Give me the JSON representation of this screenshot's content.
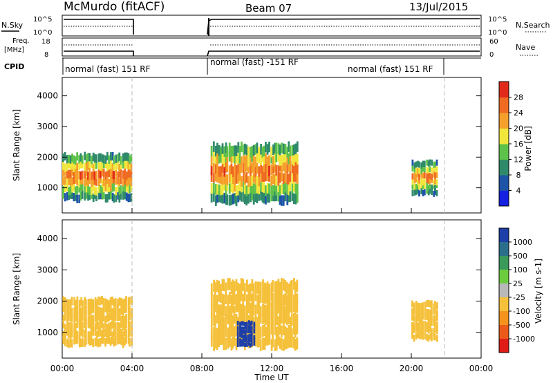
{
  "header": {
    "station": "McMurdo (fitACF)",
    "beam": "Beam 07",
    "date": "13/Jul/2015"
  },
  "panels": {
    "nsky": {
      "label": "N.Sky",
      "tick_top": "10^5",
      "tick_bottom": "10^0",
      "right_label": "N.Search",
      "right_tick_top": "10^5",
      "right_tick_bottom": "10^0"
    },
    "freq": {
      "label_line1": "Freq.",
      "label_line2": "[MHz]",
      "tick_top": "18",
      "tick_bottom": "8",
      "right_label": "Nave",
      "right_tick_top": "60",
      "right_tick_bottom": "0"
    },
    "cpid": {
      "label": "CPID",
      "segments": [
        {
          "text": "normal (fast) 151 RF"
        },
        {
          "text": "normal (fast) -151 RF"
        },
        {
          "text": "normal (fast) 151 RF"
        }
      ]
    }
  },
  "axes": {
    "ylabel": "Slant Range [km]",
    "yticks": [
      "1000",
      "2000",
      "3000",
      "4000"
    ],
    "xticks": [
      "00:00",
      "04:00",
      "08:00",
      "12:00",
      "16:00",
      "20:00",
      "00:00"
    ],
    "xlabel": "Time UT"
  },
  "power_scale": {
    "label": "Power [dB]",
    "ticks": [
      "4",
      "8",
      "12",
      "16",
      "20",
      "24",
      "28"
    ],
    "colors": [
      "#1520e0",
      "#1e54a8",
      "#2f8a6a",
      "#5ec24a",
      "#f0e63c",
      "#f5a02a",
      "#ef6a22",
      "#e22a1a"
    ]
  },
  "velocity_scale": {
    "label": "Velocity [m s-1]",
    "ticks": [
      "1000",
      "500",
      "100",
      "25",
      "-25",
      "-100",
      "-500",
      "-1000"
    ],
    "colors": [
      "#1d3fa8",
      "#2a6e8c",
      "#3a9a5c",
      "#6ccc3e",
      "#b8b8b8",
      "#f5c03a",
      "#f5931c",
      "#ec5a1a",
      "#e01c18"
    ]
  },
  "chart_data": [
    {
      "type": "heatmap",
      "title": "Power",
      "xlabel": "Time UT",
      "ylabel": "Slant Range [km]",
      "xlim": [
        0,
        24
      ],
      "ylim": [
        180,
        4600
      ],
      "colorbar": {
        "label": "Power [dB]",
        "range": [
          0,
          32
        ]
      },
      "echo_regions": [
        {
          "t_start": 0.0,
          "t_end": 4.0,
          "range_start": 500,
          "range_end": 2000,
          "peak_power_db": 30
        },
        {
          "t_start": 8.5,
          "t_end": 13.5,
          "range_start": 400,
          "range_end": 2300,
          "peak_power_db": 30
        },
        {
          "t_start": 20.0,
          "t_end": 21.5,
          "range_start": 700,
          "range_end": 1800,
          "peak_power_db": 28
        }
      ]
    },
    {
      "type": "heatmap",
      "title": "Velocity",
      "xlabel": "Time UT",
      "ylabel": "Slant Range [km]",
      "xlim": [
        0,
        24
      ],
      "ylim": [
        180,
        4600
      ],
      "colorbar": {
        "label": "Velocity [m s-1]",
        "range": [
          -1000,
          1000
        ]
      },
      "echo_regions": [
        {
          "t_start": 0.0,
          "t_end": 4.0,
          "range_start": 500,
          "range_end": 2000,
          "dominant_velocity": -300
        },
        {
          "t_start": 8.5,
          "t_end": 13.5,
          "range_start": 400,
          "range_end": 2500,
          "dominant_velocity": -300
        },
        {
          "t_start": 10.0,
          "t_end": 11.0,
          "range_start": 500,
          "range_end": 1300,
          "dominant_velocity": 800
        },
        {
          "t_start": 20.0,
          "t_end": 21.5,
          "range_start": 700,
          "range_end": 1900,
          "dominant_velocity": -300
        }
      ]
    }
  ]
}
